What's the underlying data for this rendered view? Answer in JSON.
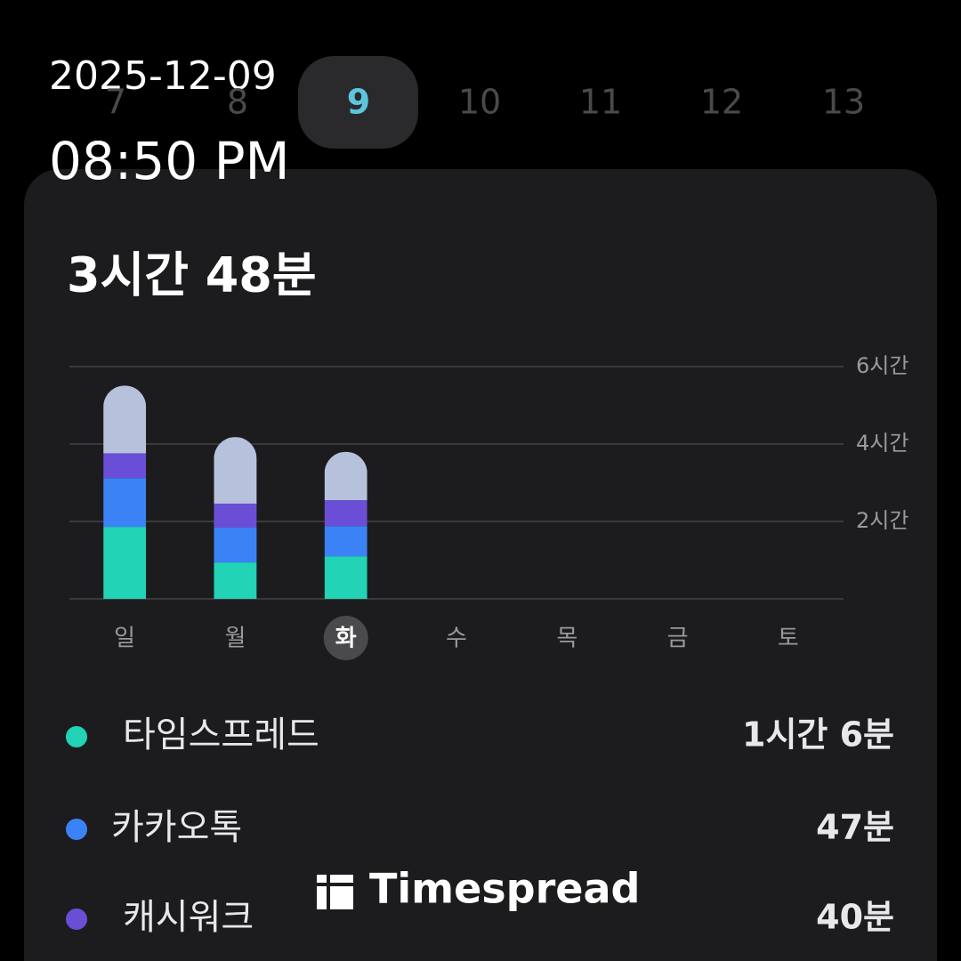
{
  "overlay": {
    "date": "2025-12-09",
    "time": "08:50 PM"
  },
  "date_strip": {
    "days": [
      "7",
      "8",
      "9",
      "10",
      "11",
      "12",
      "13"
    ],
    "selected": 2
  },
  "summary": {
    "total": "3시간 48분"
  },
  "chart_data": {
    "type": "stacked_bar",
    "categories": [
      "일",
      "월",
      "화",
      "수",
      "목",
      "금",
      "토"
    ],
    "selected": 2,
    "series": [
      {
        "name": "타임스프레드",
        "color": "#22d3b5",
        "values": [
          1.86,
          0.94,
          1.1,
          null,
          null,
          null,
          null
        ]
      },
      {
        "name": "카카오톡",
        "color": "#3b82f6",
        "values": [
          1.26,
          0.9,
          0.78,
          null,
          null,
          null,
          null
        ]
      },
      {
        "name": "캐시워크",
        "color": "#6a4fd6",
        "values": [
          0.64,
          0.62,
          0.67,
          null,
          null,
          null,
          null
        ]
      },
      {
        "color": "#b6c2dc",
        "values": [
          1.75,
          1.72,
          1.25,
          null,
          null,
          null,
          null
        ]
      }
    ],
    "ylim": [
      0,
      6
    ],
    "yticks": [
      {
        "value": 2,
        "label": "2시간"
      },
      {
        "value": 4,
        "label": "4시간"
      },
      {
        "value": 6,
        "label": "6시간"
      }
    ],
    "grid": true
  },
  "app_usage": [
    "1시간 6분",
    "47분",
    "40분"
  ],
  "watermark": "Timespread"
}
